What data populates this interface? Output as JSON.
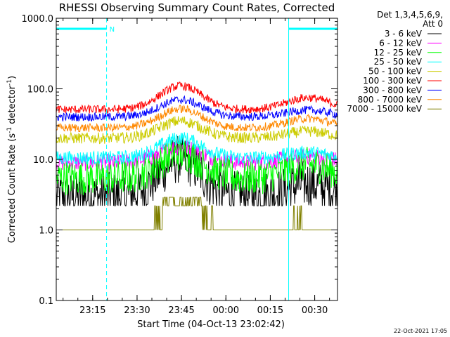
{
  "chart_data": {
    "type": "line",
    "title": "RHESSI Observing Summary Count Rates, Corrected",
    "ylabel_main": "Corrected Count Rate (s",
    "ylabel_sup1": "-1",
    "ylabel_mid": " detector",
    "ylabel_sup2": "-1",
    "ylabel_end": ")",
    "xlabel": "Start Time (04-Oct-13 23:02:42)",
    "footer": "22-Oct-2021 17:05",
    "yscale": "log",
    "ylim": [
      0.1,
      1000.0
    ],
    "xlim_minutes": [
      0,
      95
    ],
    "y_ticks": [
      {
        "value": 1000.0,
        "label": "1000.0"
      },
      {
        "value": 100.0,
        "label": "100.0"
      },
      {
        "value": 10.0,
        "label": "10.0"
      },
      {
        "value": 1.0,
        "label": "1.0"
      },
      {
        "value": 0.1,
        "label": "0.1"
      }
    ],
    "x_ticks": [
      {
        "minute": 12.3,
        "label": "23:15"
      },
      {
        "minute": 27.3,
        "label": "23:30"
      },
      {
        "minute": 42.3,
        "label": "23:45"
      },
      {
        "minute": 57.3,
        "label": "00:00"
      },
      {
        "minute": 72.3,
        "label": "00:15"
      },
      {
        "minute": 87.3,
        "label": "00:30"
      }
    ],
    "legend": {
      "header": [
        "Det 1,3,4,5,6,9,",
        "Att 0"
      ],
      "placement": "right"
    },
    "night_markers": {
      "color": "#00ffff",
      "solid_lines_minute": [
        0,
        78.5
      ],
      "dashed_lines_minute": [
        17,
        95
      ],
      "flag_bars": [
        {
          "from": 0,
          "to": 17,
          "label": "N"
        },
        {
          "from": 78.5,
          "to": 95,
          "label": ""
        }
      ]
    },
    "series": [
      {
        "name": "3 - 6 keV",
        "color": "#000000",
        "base": 3.0,
        "peak": 10.0,
        "hump2": 4.5,
        "noise": 0.35,
        "floor": 2.2
      },
      {
        "name": "6 - 12 keV",
        "color": "#ff00ff",
        "base": 9.0,
        "peak": 15.0,
        "hump2": 11.0,
        "noise": 0.12
      },
      {
        "name": "12 - 25 keV",
        "color": "#00ff00",
        "base": 5.5,
        "peak": 12.0,
        "hump2": 8.5,
        "noise": 0.25
      },
      {
        "name": "25 - 50 keV",
        "color": "#00ffff",
        "base": 10.5,
        "peak": 20.0,
        "hump2": 12.5,
        "noise": 0.1
      },
      {
        "name": "50 - 100 keV",
        "color": "#cccc00",
        "base": 20.0,
        "peak": 35.0,
        "hump2": 25.0,
        "noise": 0.08
      },
      {
        "name": "100 - 300 keV",
        "color": "#ff0000",
        "base": 51.0,
        "peak": 110.0,
        "hump2": 75.0,
        "noise": 0.06
      },
      {
        "name": "300 - 800 keV",
        "color": "#0000ff",
        "base": 40.0,
        "peak": 70.0,
        "hump2": 50.0,
        "noise": 0.06
      },
      {
        "name": "800 - 7000 keV",
        "color": "#ff8800",
        "base": 28.0,
        "peak": 52.0,
        "hump2": 38.0,
        "noise": 0.06
      },
      {
        "name": "7000 - 15000 keV",
        "color": "#808000",
        "base": 1.0,
        "peak": 2.9,
        "hump2": 1.0,
        "noise": 0.0,
        "step": true
      }
    ]
  }
}
